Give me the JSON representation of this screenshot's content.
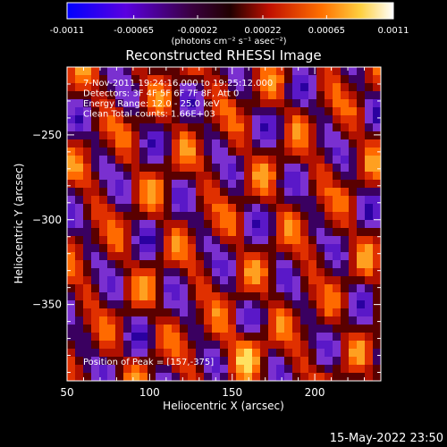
{
  "chart_data": {
    "type": "heatmap",
    "title": "Reconstructed RHESSI Image",
    "xlabel": "Heliocentric X (arcsec)",
    "ylabel": "Heliocentric Y (arcsec)",
    "xlim": [
      50,
      240
    ],
    "ylim": [
      -395,
      -210
    ],
    "x_ticks": [
      50,
      100,
      150,
      200
    ],
    "y_ticks": [
      -250,
      -300,
      -350
    ],
    "colorbar": {
      "min": -0.0011,
      "max": 0.0011,
      "ticks": [
        "-0.0011",
        "-0.00065",
        "-0.00022",
        "0.00022",
        "0.00065",
        "0.0011"
      ],
      "unit_label": "(photons cm⁻² s⁻¹ asec⁻²)",
      "colors": [
        "#0000ff",
        "#6a00d8",
        "#1a0000",
        "#d02000",
        "#ff8000",
        "#ffff80",
        "#ffffff"
      ]
    },
    "annotations": [
      "7-Nov-2011 19:24:16.000 to 19:25:12.000",
      "Detectors: 3F 4F 5F 6F 7F 8F, Att 0",
      "Energy Range: 12.0 - 25.0 keV",
      "Clean     Total counts: 1.66E+03"
    ],
    "peak_label": "Position of Peak = [157,-375]",
    "peak": [
      157,
      -375
    ]
  },
  "footer_date": "15-May-2022 23:50"
}
